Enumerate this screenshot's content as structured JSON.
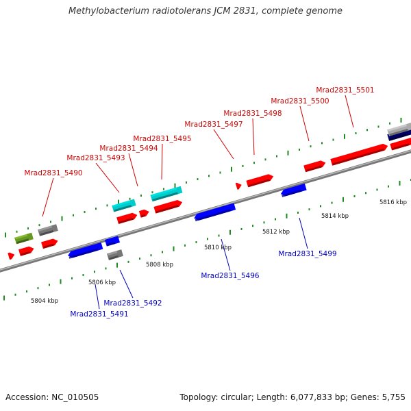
{
  "title": "Methylobacterium radiotolerans JCM 2831, complete genome",
  "footer": {
    "accession": "Accession: NC_010505",
    "summary": "Topology: circular; Length: 6,077,833 bp; Genes: 5,755"
  },
  "colors": {
    "forward_label": "#cc0000",
    "reverse_label": "#0000bb",
    "red_gene": "#ff0000",
    "blue_gene": "#0000ff",
    "cyan_gene": "#00cccc",
    "gray_gene": "#777777",
    "olive_gene": "#669922",
    "tick": "#228822",
    "backbone": "#888888"
  },
  "ticks": [
    {
      "label": "5804 kbp"
    },
    {
      "label": "5806 kbp"
    },
    {
      "label": "5808 kbp"
    },
    {
      "label": "5810 kbp"
    },
    {
      "label": "5812 kbp"
    },
    {
      "label": "5814 kbp"
    },
    {
      "label": "5816 kbp"
    }
  ],
  "genes_forward": [
    {
      "label": "Mrad2831_5490"
    },
    {
      "label": "Mrad2831_5493"
    },
    {
      "label": "Mrad2831_5494"
    },
    {
      "label": "Mrad2831_5495"
    },
    {
      "label": "Mrad2831_5497"
    },
    {
      "label": "Mrad2831_5498"
    },
    {
      "label": "Mrad2831_5500"
    },
    {
      "label": "Mrad2831_5501"
    }
  ],
  "genes_reverse": [
    {
      "label": "Mrad2831_5491"
    },
    {
      "label": "Mrad2831_5492"
    },
    {
      "label": "Mrad2831_5496"
    },
    {
      "label": "Mrad2831_5499"
    }
  ]
}
